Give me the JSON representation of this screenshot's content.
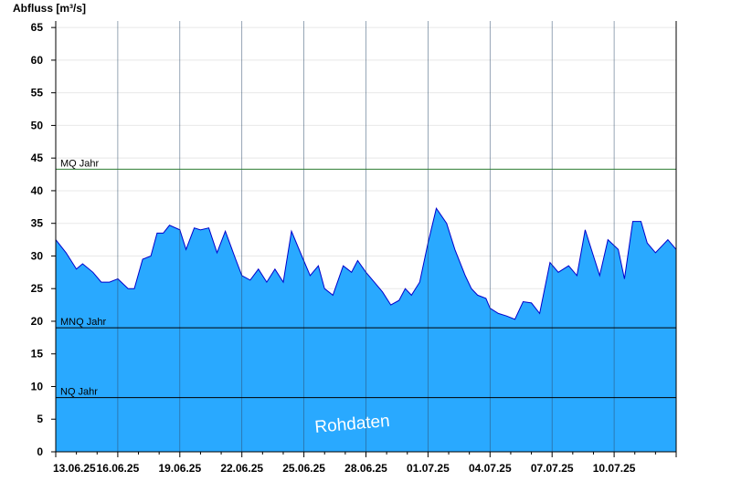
{
  "chart_data": {
    "type": "area",
    "ylabel": "Abfluss [m³/s]",
    "ylim": [
      0,
      66
    ],
    "yticks": [
      0,
      5,
      10,
      15,
      20,
      25,
      30,
      35,
      40,
      45,
      50,
      55,
      60,
      65
    ],
    "xlim": [
      "13.06.25",
      "13.07.25"
    ],
    "xticks": [
      "13.06.25",
      "16.06.25",
      "19.06.25",
      "22.06.25",
      "25.06.25",
      "28.06.25",
      "01.07.25",
      "04.07.25",
      "07.07.25",
      "10.07.25"
    ],
    "grid": true,
    "watermark": "Rohdaten",
    "reference_lines": [
      {
        "label": "MQ Jahr",
        "value": 43.3,
        "color": "#2e7d32"
      },
      {
        "label": "MNQ Jahr",
        "value": 19.0,
        "color": "#000000"
      },
      {
        "label": "NQ Jahr",
        "value": 8.3,
        "color": "#000000"
      }
    ],
    "series": [
      {
        "fill_color": "#29a9ff",
        "line_color": "#0000cc",
        "x": [
          0,
          0.5,
          1,
          1.3,
          1.8,
          2.2,
          2.6,
          3.0,
          3.5,
          3.8,
          4.2,
          4.6,
          4.9,
          5.2,
          5.5,
          6.0,
          6.3,
          6.7,
          7.0,
          7.4,
          7.8,
          8.2,
          8.7,
          9.0,
          9.4,
          9.8,
          10.2,
          10.6,
          11.0,
          11.4,
          11.9,
          12.3,
          12.7,
          13.0,
          13.4,
          13.9,
          14.3,
          14.6,
          15.0,
          15.4,
          15.8,
          16.2,
          16.6,
          16.9,
          17.2,
          17.6,
          18.0,
          18.4,
          18.9,
          19.3,
          19.8,
          20.1,
          20.4,
          20.8,
          21.0,
          21.4,
          21.8,
          22.2,
          22.6,
          23.0,
          23.4,
          23.9,
          24.3,
          24.8,
          25.2,
          25.6,
          26.0,
          26.3,
          26.7,
          27.2,
          27.5,
          27.9,
          28.3,
          28.6,
          29.0,
          29.3,
          29.6,
          30.0
        ],
        "y": [
          32.5,
          30.5,
          28,
          28.8,
          27.5,
          26,
          26,
          26.5,
          25,
          25,
          29.5,
          30,
          33.5,
          33.5,
          34.7,
          34,
          31,
          34.3,
          34,
          34.3,
          30.5,
          33.8,
          29.5,
          27,
          26.3,
          28,
          26,
          28,
          26,
          33.8,
          30,
          27,
          28.5,
          25,
          24,
          28.5,
          27.5,
          29.3,
          27.5,
          26,
          24.5,
          22.5,
          23.2,
          25,
          24,
          26,
          32,
          37.3,
          35,
          31,
          27,
          25,
          24,
          23.5,
          22,
          21.2,
          20.8,
          20.3,
          23,
          22.8,
          21.2,
          29,
          27.5,
          28.5,
          27,
          34,
          30,
          27,
          32.5,
          31,
          26.5,
          35.3,
          35.3,
          32,
          30.5,
          31.5,
          32.5,
          31
        ]
      }
    ]
  }
}
